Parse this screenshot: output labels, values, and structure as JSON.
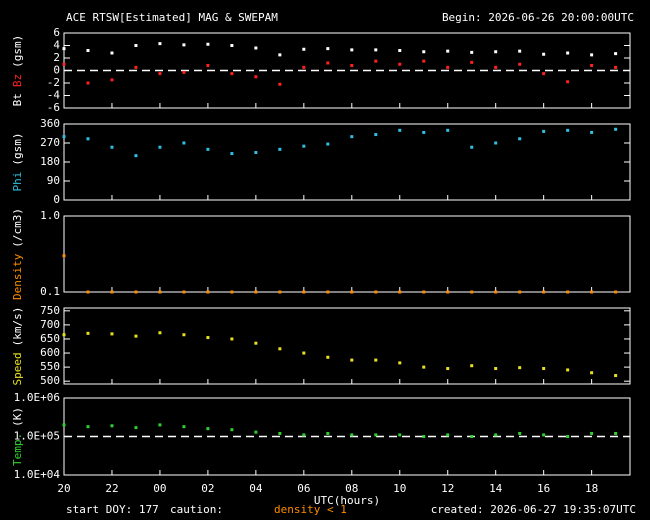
{
  "header": {
    "title": "ACE RTSW[Estimated] MAG & SWEPAM",
    "begin": "Begin: 2026-06-26 20:00:00UTC"
  },
  "footer": {
    "start": "start DOY: 177",
    "caution": "caution:",
    "density_note": "density < 1",
    "created": "created: 2026-06-27 19:35:07UTC"
  },
  "chart_data": [
    {
      "type": "scatter",
      "ylabel": [
        {
          "text": "Bt",
          "color": "#ffffff"
        },
        {
          "text": "Bz",
          "color": "#ff2020"
        },
        {
          "text": "(gsm)",
          "color": "#ffffff"
        }
      ],
      "x": [
        0,
        1,
        2,
        3,
        4,
        5,
        6,
        7,
        8,
        9,
        10,
        11,
        12,
        13,
        14,
        15,
        16,
        17,
        18,
        19,
        20,
        21,
        22,
        23
      ],
      "xlim": [
        0,
        23.6
      ],
      "ylim": [
        -6,
        6
      ],
      "yticks": [
        -6,
        -4,
        -2,
        0,
        2,
        4,
        6
      ],
      "reference_line": 0,
      "series": [
        {
          "name": "Bt",
          "color": "#ffffff",
          "values": [
            3.5,
            3.2,
            2.8,
            4,
            4.3,
            4.1,
            4.2,
            4,
            3.6,
            2.5,
            3.4,
            3.5,
            3.3,
            3.3,
            3.2,
            3.0,
            3.1,
            2.9,
            3,
            3.1,
            2.6,
            2.8,
            2.5,
            2.7
          ]
        },
        {
          "name": "Bz",
          "color": "#ff2020",
          "values": [
            1,
            -2,
            -1.5,
            0.5,
            -0.5,
            -0.3,
            0.8,
            -0.5,
            -1,
            -2.2,
            0.5,
            1.2,
            0.8,
            1.5,
            1,
            1.5,
            0.5,
            1.3,
            0.5,
            1.0,
            -0.5,
            -1.8,
            0.8,
            0.5
          ]
        }
      ]
    },
    {
      "type": "scatter",
      "ylabel": [
        {
          "text": "Phi",
          "color": "#30c0e0"
        },
        {
          "text": "(gsm)",
          "color": "#ffffff"
        }
      ],
      "x": [
        0,
        1,
        2,
        3,
        4,
        5,
        6,
        7,
        8,
        9,
        10,
        11,
        12,
        13,
        14,
        15,
        16,
        17,
        18,
        19,
        20,
        21,
        22,
        23
      ],
      "xlim": [
        0,
        23.6
      ],
      "ylim": [
        0,
        360
      ],
      "yticks": [
        0,
        90,
        180,
        270,
        360
      ],
      "series": [
        {
          "name": "Phi",
          "color": "#30c0e0",
          "values": [
            300,
            290,
            250,
            210,
            250,
            270,
            240,
            220,
            225,
            240,
            255,
            265,
            300,
            310,
            330,
            320,
            330,
            250,
            270,
            290,
            325,
            330,
            320,
            335
          ]
        }
      ]
    },
    {
      "type": "scatter",
      "ylabel": [
        {
          "text": "Density",
          "color": "#ff8c00"
        },
        {
          "text": "(/cm3)",
          "color": "#ffffff"
        }
      ],
      "x": [
        0,
        1,
        2,
        3,
        4,
        5,
        6,
        7,
        8,
        9,
        10,
        11,
        12,
        13,
        14,
        15,
        16,
        17,
        18,
        19,
        20,
        21,
        22,
        23
      ],
      "xlim": [
        0,
        23.6
      ],
      "ylim": [
        0.1,
        1
      ],
      "log": true,
      "yticks": [
        0.1,
        {
          "value": 1,
          "label": "1.0"
        }
      ],
      "series": [
        {
          "name": "Density",
          "color": "#ff8c00",
          "values": [
            0.3,
            0.1,
            0.1,
            0.1,
            0.1,
            0.1,
            0.1,
            0.1,
            0.1,
            0.1,
            0.1,
            0.1,
            0.1,
            0.1,
            0.1,
            0.1,
            0.1,
            0.1,
            0.1,
            0.1,
            0.1,
            0.1,
            0.1,
            0.1
          ]
        }
      ]
    },
    {
      "type": "scatter",
      "ylabel": [
        {
          "text": "Speed",
          "color": "#e8e020"
        },
        {
          "text": "(km/s)",
          "color": "#ffffff"
        }
      ],
      "x": [
        0,
        1,
        2,
        3,
        4,
        5,
        6,
        7,
        8,
        9,
        10,
        11,
        12,
        13,
        14,
        15,
        16,
        17,
        18,
        19,
        20,
        21,
        22,
        23
      ],
      "xlim": [
        0,
        23.6
      ],
      "ylim": [
        490,
        760
      ],
      "yticks": [
        500,
        550,
        600,
        650,
        700,
        750
      ],
      "series": [
        {
          "name": "Speed",
          "color": "#e8e020",
          "values": [
            665,
            670,
            668,
            660,
            672,
            665,
            655,
            650,
            635,
            615,
            600,
            585,
            575,
            575,
            565,
            550,
            545,
            555,
            545,
            548,
            545,
            540,
            530,
            520
          ]
        }
      ]
    },
    {
      "type": "scatter",
      "ylabel": [
        {
          "text": "Temp.",
          "color": "#30d030"
        },
        {
          "text": "(K)",
          "color": "#ffffff"
        }
      ],
      "x": [
        0,
        1,
        2,
        3,
        4,
        5,
        6,
        7,
        8,
        9,
        10,
        11,
        12,
        13,
        14,
        15,
        16,
        17,
        18,
        19,
        20,
        21,
        22,
        23
      ],
      "xlim": [
        0,
        23.6
      ],
      "ylim": [
        10000,
        1000000
      ],
      "log": true,
      "reference_line": 100000,
      "yticks": [
        {
          "value": 10000,
          "label": "1.0E+04"
        },
        {
          "value": 100000,
          "label": "1.0E+05"
        },
        {
          "value": 1000000,
          "label": "1.0E+06"
        }
      ],
      "xlabel": "UTC(hours)",
      "xticks": [
        {
          "value": 0,
          "label": "20"
        },
        {
          "value": 2,
          "label": "22"
        },
        {
          "value": 4,
          "label": "00"
        },
        {
          "value": 6,
          "label": "02"
        },
        {
          "value": 8,
          "label": "04"
        },
        {
          "value": 10,
          "label": "06"
        },
        {
          "value": 12,
          "label": "08"
        },
        {
          "value": 14,
          "label": "10"
        },
        {
          "value": 16,
          "label": "12"
        },
        {
          "value": 18,
          "label": "14"
        },
        {
          "value": 20,
          "label": "16"
        },
        {
          "value": 22,
          "label": "18"
        }
      ],
      "series": [
        {
          "name": "Temp.",
          "color": "#30d030",
          "values": [
            200000,
            180000,
            190000,
            170000,
            200000,
            180000,
            160000,
            150000,
            130000,
            120000,
            110000,
            120000,
            110000,
            110000,
            110000,
            100000,
            110000,
            100000,
            110000,
            120000,
            110000,
            100000,
            120000,
            120000
          ]
        }
      ]
    }
  ]
}
